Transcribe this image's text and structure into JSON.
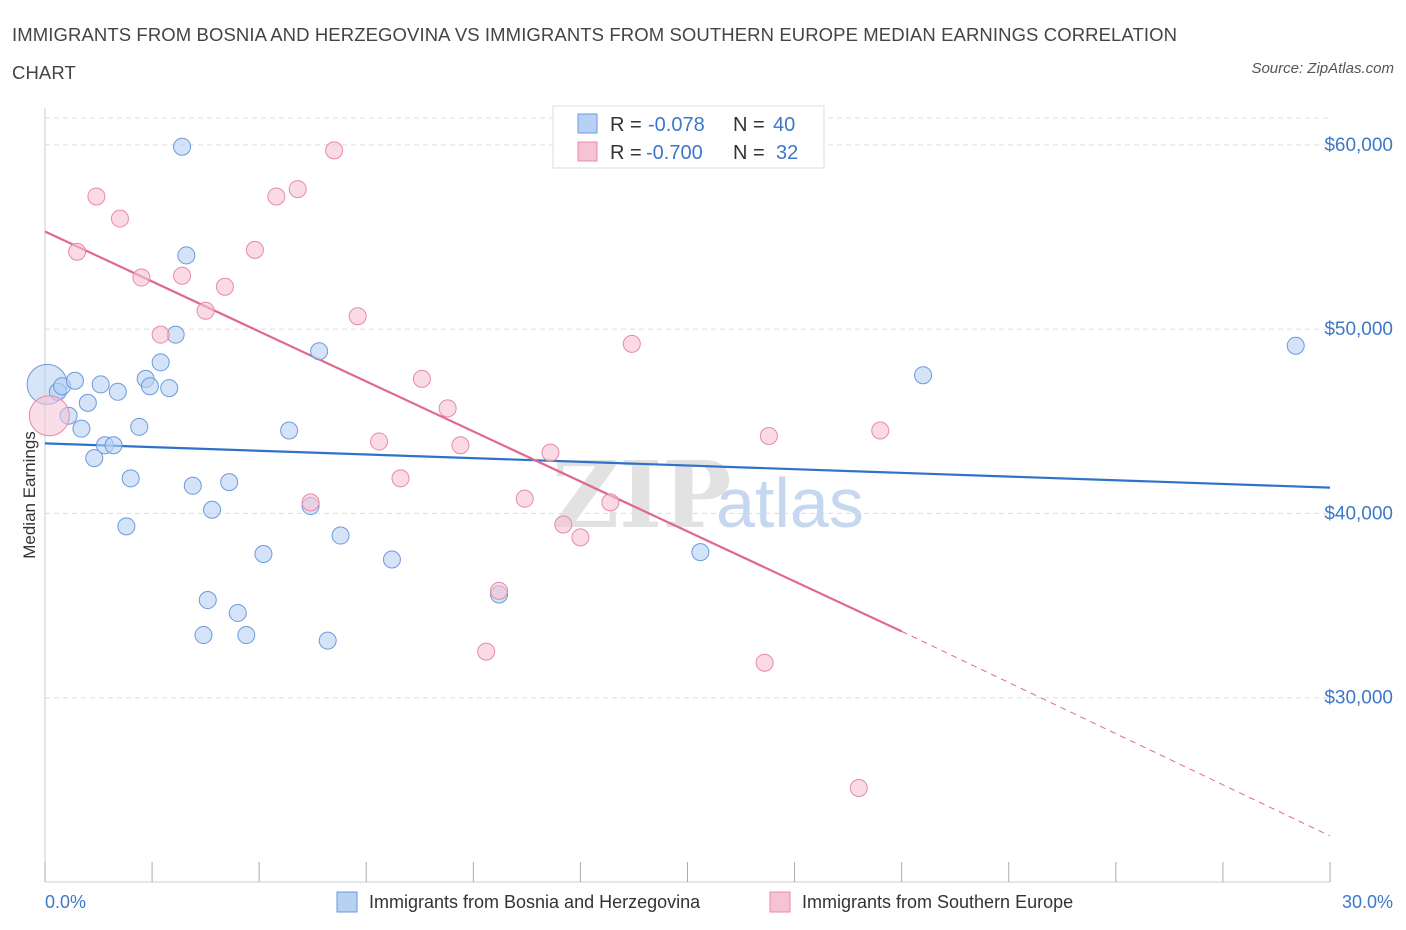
{
  "header": {
    "title": "IMMIGRANTS FROM BOSNIA AND HERZEGOVINA VS IMMIGRANTS FROM SOUTHERN EUROPE MEDIAN EARNINGS CORRELATION CHART",
    "source": "Source: ZipAtlas.com"
  },
  "watermark": {
    "zip": "ZIP",
    "atlas": "atlas"
  },
  "colors": {
    "blue_fill": "#b7d0f3",
    "blue_stroke": "#6a9bdb",
    "blue_line": "#2f72c9",
    "pink_fill": "#f6c3d3",
    "pink_stroke": "#e78aa8",
    "pink_line": "#e0688f",
    "grid": "#dddddd",
    "tick_text": "#3d78c8"
  },
  "legend": {
    "rows": [
      {
        "r_label": "R =",
        "r_value": "-0.078",
        "n_label": "N =",
        "n_value": "40"
      },
      {
        "r_label": "R =",
        "r_value": "-0.700",
        "n_label": "N =",
        "n_value": "32"
      }
    ]
  },
  "chart_data": {
    "type": "scatter",
    "title": "IMMIGRANTS FROM BOSNIA AND HERZEGOVINA VS IMMIGRANTS FROM SOUTHERN EUROPE MEDIAN EARNINGS CORRELATION CHART",
    "xlabel": "",
    "ylabel": "Median Earnings",
    "xlim": [
      0,
      30
    ],
    "ylim": [
      20000,
      62000
    ],
    "x_tick_labels": [
      "0.0%",
      "30.0%"
    ],
    "y_ticks": [
      30000,
      40000,
      50000,
      60000
    ],
    "y_tick_labels": [
      "$30,000",
      "$40,000",
      "$50,000",
      "$60,000"
    ],
    "grid": true,
    "legend_position": "top-center",
    "series": [
      {
        "name": "Immigrants from Bosnia and Herzegovina",
        "color": "blue",
        "R": -0.078,
        "N": 40,
        "trend": {
          "x": [
            0,
            30
          ],
          "y": [
            43800,
            41400
          ]
        },
        "points": [
          {
            "x": 0.05,
            "y": 47000,
            "big": true
          },
          {
            "x": 0.3,
            "y": 46600
          },
          {
            "x": 0.4,
            "y": 46900
          },
          {
            "x": 0.55,
            "y": 45300
          },
          {
            "x": 0.7,
            "y": 47200
          },
          {
            "x": 0.85,
            "y": 44600
          },
          {
            "x": 1.0,
            "y": 46000
          },
          {
            "x": 1.15,
            "y": 43000
          },
          {
            "x": 1.3,
            "y": 47000
          },
          {
            "x": 1.4,
            "y": 43700
          },
          {
            "x": 1.6,
            "y": 43700
          },
          {
            "x": 1.7,
            "y": 46600
          },
          {
            "x": 1.9,
            "y": 39300
          },
          {
            "x": 2.0,
            "y": 41900
          },
          {
            "x": 2.2,
            "y": 44700
          },
          {
            "x": 2.35,
            "y": 47300
          },
          {
            "x": 2.45,
            "y": 46900
          },
          {
            "x": 2.7,
            "y": 48200
          },
          {
            "x": 2.9,
            "y": 46800
          },
          {
            "x": 3.05,
            "y": 49700
          },
          {
            "x": 3.2,
            "y": 59900
          },
          {
            "x": 3.3,
            "y": 54000
          },
          {
            "x": 3.45,
            "y": 41500
          },
          {
            "x": 3.7,
            "y": 33400
          },
          {
            "x": 3.8,
            "y": 35300
          },
          {
            "x": 3.9,
            "y": 40200
          },
          {
            "x": 4.3,
            "y": 41700
          },
          {
            "x": 4.5,
            "y": 34600
          },
          {
            "x": 4.7,
            "y": 33400
          },
          {
            "x": 5.1,
            "y": 37800
          },
          {
            "x": 5.7,
            "y": 44500
          },
          {
            "x": 6.2,
            "y": 40400
          },
          {
            "x": 6.4,
            "y": 48800
          },
          {
            "x": 6.6,
            "y": 33100
          },
          {
            "x": 6.9,
            "y": 38800
          },
          {
            "x": 8.1,
            "y": 37500
          },
          {
            "x": 10.6,
            "y": 35600
          },
          {
            "x": 15.3,
            "y": 37900
          },
          {
            "x": 20.5,
            "y": 47500
          },
          {
            "x": 29.2,
            "y": 49100
          }
        ]
      },
      {
        "name": "Immigrants from Southern Europe",
        "color": "pink",
        "R": -0.7,
        "N": 32,
        "trend": {
          "x": [
            0,
            20
          ],
          "y": [
            55300,
            33600
          ]
        },
        "trend_extension": {
          "x": [
            20,
            30
          ],
          "y": [
            33600,
            22500
          ]
        },
        "points": [
          {
            "x": 0.1,
            "y": 45300,
            "big": true
          },
          {
            "x": 0.75,
            "y": 54200
          },
          {
            "x": 1.2,
            "y": 57200
          },
          {
            "x": 1.75,
            "y": 56000
          },
          {
            "x": 2.25,
            "y": 52800
          },
          {
            "x": 2.7,
            "y": 49700
          },
          {
            "x": 3.2,
            "y": 52900
          },
          {
            "x": 3.75,
            "y": 51000
          },
          {
            "x": 4.2,
            "y": 52300
          },
          {
            "x": 4.9,
            "y": 54300
          },
          {
            "x": 5.4,
            "y": 57200
          },
          {
            "x": 5.9,
            "y": 57600
          },
          {
            "x": 6.2,
            "y": 40600
          },
          {
            "x": 6.75,
            "y": 59700
          },
          {
            "x": 7.3,
            "y": 50700
          },
          {
            "x": 7.8,
            "y": 43900
          },
          {
            "x": 8.3,
            "y": 41900
          },
          {
            "x": 8.8,
            "y": 47300
          },
          {
            "x": 9.4,
            "y": 45700
          },
          {
            "x": 9.7,
            "y": 43700
          },
          {
            "x": 10.3,
            "y": 32500
          },
          {
            "x": 10.6,
            "y": 35800
          },
          {
            "x": 11.2,
            "y": 40800
          },
          {
            "x": 11.8,
            "y": 43300
          },
          {
            "x": 12.1,
            "y": 39400
          },
          {
            "x": 12.5,
            "y": 38700
          },
          {
            "x": 13.2,
            "y": 40600
          },
          {
            "x": 13.7,
            "y": 49200
          },
          {
            "x": 16.8,
            "y": 31900
          },
          {
            "x": 16.9,
            "y": 44200
          },
          {
            "x": 19.0,
            "y": 25100
          },
          {
            "x": 19.5,
            "y": 44500
          }
        ]
      }
    ]
  }
}
